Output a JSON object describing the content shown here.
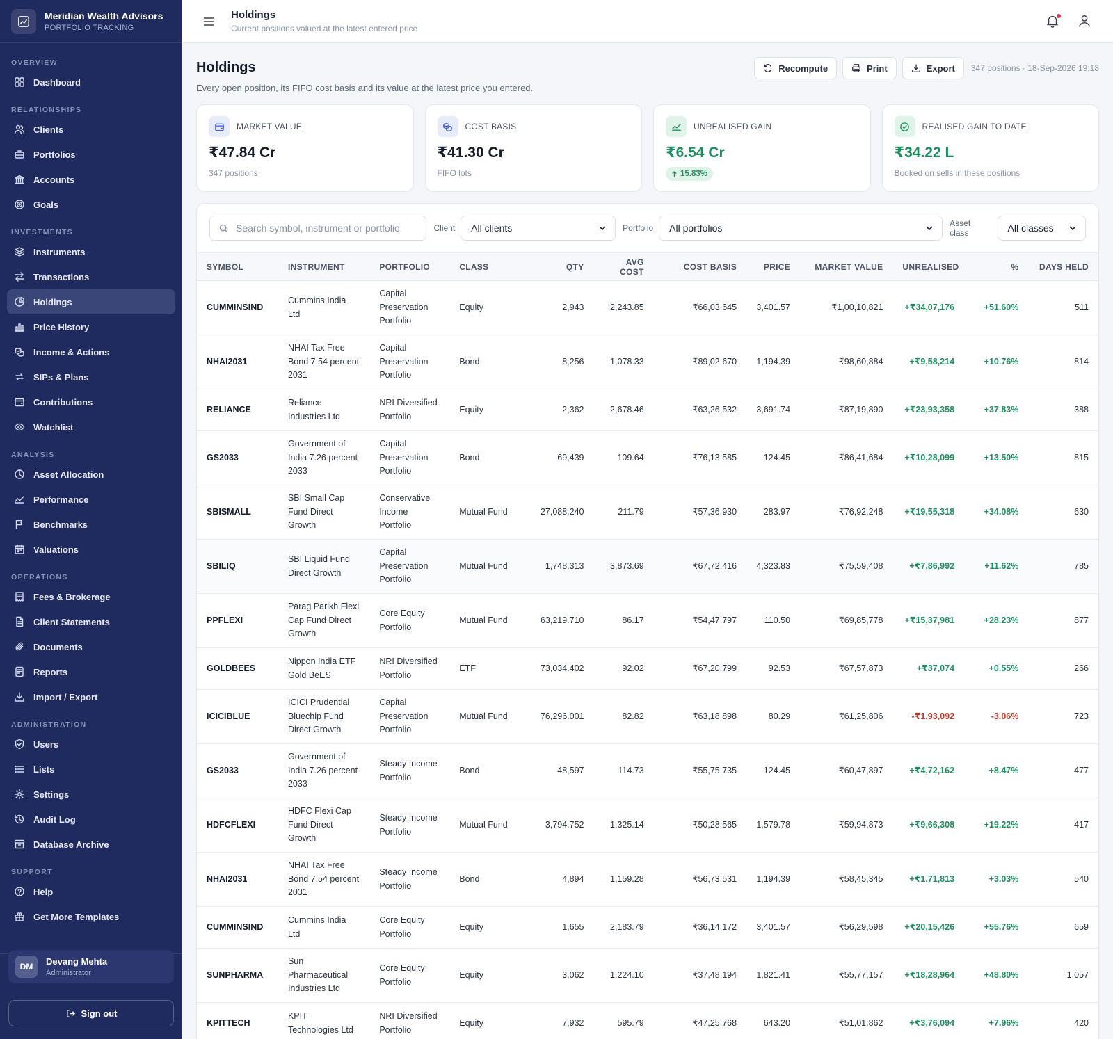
{
  "brand": {
    "name": "Meridian Wealth Advisors",
    "subtitle": "PORTFOLIO TRACKING"
  },
  "nav": {
    "sections": [
      {
        "label": "OVERVIEW",
        "items": [
          {
            "label": "Dashboard",
            "icon": "grid-icon"
          }
        ]
      },
      {
        "label": "RELATIONSHIPS",
        "items": [
          {
            "label": "Clients",
            "icon": "users-icon"
          },
          {
            "label": "Portfolios",
            "icon": "briefcase-icon"
          },
          {
            "label": "Accounts",
            "icon": "bank-icon"
          },
          {
            "label": "Goals",
            "icon": "target-icon"
          }
        ]
      },
      {
        "label": "INVESTMENTS",
        "items": [
          {
            "label": "Instruments",
            "icon": "layers-icon"
          },
          {
            "label": "Transactions",
            "icon": "arrows-icon"
          },
          {
            "label": "Holdings",
            "icon": "pie-icon",
            "active": true
          },
          {
            "label": "Price History",
            "icon": "bar-chart-icon"
          },
          {
            "label": "Income & Actions",
            "icon": "coins-icon"
          },
          {
            "label": "SIPs & Plans",
            "icon": "repeat-icon"
          },
          {
            "label": "Contributions",
            "icon": "wallet-icon"
          },
          {
            "label": "Watchlist",
            "icon": "eye-icon"
          }
        ]
      },
      {
        "label": "ANALYSIS",
        "items": [
          {
            "label": "Asset Allocation",
            "icon": "allocation-icon"
          },
          {
            "label": "Performance",
            "icon": "trend-icon"
          },
          {
            "label": "Benchmarks",
            "icon": "flag-icon"
          },
          {
            "label": "Valuations",
            "icon": "calendar-icon"
          }
        ]
      },
      {
        "label": "OPERATIONS",
        "items": [
          {
            "label": "Fees & Brokerage",
            "icon": "receipt-icon"
          },
          {
            "label": "Client Statements",
            "icon": "file-icon"
          },
          {
            "label": "Documents",
            "icon": "paperclip-icon"
          },
          {
            "label": "Reports",
            "icon": "report-icon"
          },
          {
            "label": "Import / Export",
            "icon": "download-icon"
          }
        ]
      },
      {
        "label": "ADMINISTRATION",
        "items": [
          {
            "label": "Users",
            "icon": "shield-icon"
          },
          {
            "label": "Lists",
            "icon": "list-icon"
          },
          {
            "label": "Settings",
            "icon": "gear-icon"
          },
          {
            "label": "Audit Log",
            "icon": "history-icon"
          },
          {
            "label": "Database Archive",
            "icon": "archive-icon"
          }
        ]
      },
      {
        "label": "SUPPORT",
        "items": [
          {
            "label": "Help",
            "icon": "help-icon"
          },
          {
            "label": "Get More Templates",
            "icon": "gift-icon"
          }
        ]
      }
    ]
  },
  "user": {
    "initials": "DM",
    "name": "Devang Mehta",
    "role": "Administrator",
    "signout": "Sign out"
  },
  "topbar": {
    "title": "Holdings",
    "subtitle": "Current positions valued at the latest entered price"
  },
  "page": {
    "title": "Holdings",
    "subtitle": "Every open position, its FIFO cost basis and its value at the latest price you entered.",
    "actions": {
      "recompute": "Recompute",
      "print": "Print",
      "export": "Export"
    },
    "meta": "347 positions · 18-Sep-2026 19:18"
  },
  "stats": [
    {
      "label": "MARKET VALUE",
      "value": "₹47.84 Cr",
      "foot": "347 positions",
      "icon": "wallet-icon",
      "tone": "blue"
    },
    {
      "label": "COST BASIS",
      "value": "₹41.30 Cr",
      "foot": "FIFO lots",
      "icon": "coins-icon",
      "tone": "blue"
    },
    {
      "label": "UNREALISED GAIN",
      "value": "₹6.54 Cr",
      "pill": "15.83%",
      "icon": "trend-icon",
      "tone": "green"
    },
    {
      "label": "REALISED GAIN TO DATE",
      "value": "₹34.22 L",
      "foot": "Booked on sells in these positions",
      "icon": "check-circle-icon",
      "tone": "green"
    }
  ],
  "filters": {
    "search_placeholder": "Search symbol, instrument or portfolio",
    "client_label": "Client",
    "client_value": "All clients",
    "portfolio_label": "Portfolio",
    "portfolio_value": "All portfolios",
    "class_label": "Asset class",
    "class_value": "All classes"
  },
  "table": {
    "columns": [
      "SYMBOL",
      "INSTRUMENT",
      "PORTFOLIO",
      "CLASS",
      "QTY",
      "AVG COST",
      "COST BASIS",
      "PRICE",
      "MARKET VALUE",
      "UNREALISED",
      "%",
      "DAYS HELD"
    ],
    "rows": [
      [
        "CUMMINSIND",
        "Cummins India Ltd",
        "Capital Preservation Portfolio",
        "Equity",
        "2,943",
        "2,243.85",
        "₹66,03,645",
        "3,401.57",
        "₹1,00,10,821",
        "+₹34,07,176",
        "+51.60%",
        "511"
      ],
      [
        "NHAI2031",
        "NHAI Tax Free Bond 7.54 percent 2031",
        "Capital Preservation Portfolio",
        "Bond",
        "8,256",
        "1,078.33",
        "₹89,02,670",
        "1,194.39",
        "₹98,60,884",
        "+₹9,58,214",
        "+10.76%",
        "814"
      ],
      [
        "RELIANCE",
        "Reliance Industries Ltd",
        "NRI Diversified Portfolio",
        "Equity",
        "2,362",
        "2,678.46",
        "₹63,26,532",
        "3,691.74",
        "₹87,19,890",
        "+₹23,93,358",
        "+37.83%",
        "388"
      ],
      [
        "GS2033",
        "Government of India 7.26 percent 2033",
        "Capital Preservation Portfolio",
        "Bond",
        "69,439",
        "109.64",
        "₹76,13,585",
        "124.45",
        "₹86,41,684",
        "+₹10,28,099",
        "+13.50%",
        "815"
      ],
      [
        "SBISMALL",
        "SBI Small Cap Fund Direct Growth",
        "Conservative Income Portfolio",
        "Mutual Fund",
        "27,088.240",
        "211.79",
        "₹57,36,930",
        "283.97",
        "₹76,92,248",
        "+₹19,55,318",
        "+34.08%",
        "630"
      ],
      [
        "SBILIQ",
        "SBI Liquid Fund Direct Growth",
        "Capital Preservation Portfolio",
        "Mutual Fund",
        "1,748.313",
        "3,873.69",
        "₹67,72,416",
        "4,323.83",
        "₹75,59,408",
        "+₹7,86,992",
        "+11.62%",
        "785"
      ],
      [
        "PPFLEXI",
        "Parag Parikh Flexi Cap Fund Direct Growth",
        "Core Equity Portfolio",
        "Mutual Fund",
        "63,219.710",
        "86.17",
        "₹54,47,797",
        "110.50",
        "₹69,85,778",
        "+₹15,37,981",
        "+28.23%",
        "877"
      ],
      [
        "GOLDBEES",
        "Nippon India ETF Gold BeES",
        "NRI Diversified Portfolio",
        "ETF",
        "73,034.402",
        "92.02",
        "₹67,20,799",
        "92.53",
        "₹67,57,873",
        "+₹37,074",
        "+0.55%",
        "266"
      ],
      [
        "ICICIBLUE",
        "ICICI Prudential Bluechip Fund Direct Growth",
        "Capital Preservation Portfolio",
        "Mutual Fund",
        "76,296.001",
        "82.82",
        "₹63,18,898",
        "80.29",
        "₹61,25,806",
        "-₹1,93,092",
        "-3.06%",
        "723"
      ],
      [
        "GS2033",
        "Government of India 7.26 percent 2033",
        "Steady Income Portfolio",
        "Bond",
        "48,597",
        "114.73",
        "₹55,75,735",
        "124.45",
        "₹60,47,897",
        "+₹4,72,162",
        "+8.47%",
        "477"
      ],
      [
        "HDFCFLEXI",
        "HDFC Flexi Cap Fund Direct Growth",
        "Steady Income Portfolio",
        "Mutual Fund",
        "3,794.752",
        "1,325.14",
        "₹50,28,565",
        "1,579.78",
        "₹59,94,873",
        "+₹9,66,308",
        "+19.22%",
        "417"
      ],
      [
        "NHAI2031",
        "NHAI Tax Free Bond 7.54 percent 2031",
        "Steady Income Portfolio",
        "Bond",
        "4,894",
        "1,159.28",
        "₹56,73,531",
        "1,194.39",
        "₹58,45,345",
        "+₹1,71,813",
        "+3.03%",
        "540"
      ],
      [
        "CUMMINSIND",
        "Cummins India Ltd",
        "Core Equity Portfolio",
        "Equity",
        "1,655",
        "2,183.79",
        "₹36,14,172",
        "3,401.57",
        "₹56,29,598",
        "+₹20,15,426",
        "+55.76%",
        "659"
      ],
      [
        "SUNPHARMA",
        "Sun Pharmaceutical Industries Ltd",
        "Core Equity Portfolio",
        "Equity",
        "3,062",
        "1,224.10",
        "₹37,48,194",
        "1,821.41",
        "₹55,77,157",
        "+₹18,28,964",
        "+48.80%",
        "1,057"
      ],
      [
        "KPITTECH",
        "KPIT Technologies Ltd",
        "NRI Diversified Portfolio",
        "Equity",
        "7,932",
        "595.79",
        "₹47,25,768",
        "643.20",
        "₹51,01,862",
        "+₹3,76,094",
        "+7.96%",
        "420"
      ]
    ]
  },
  "colors": {
    "sidebar": "#1f2a5e",
    "active": "#3a4578",
    "positive": "#1f8f5f",
    "negative": "#c0392b",
    "accent_blue": "#3b5bdb"
  }
}
